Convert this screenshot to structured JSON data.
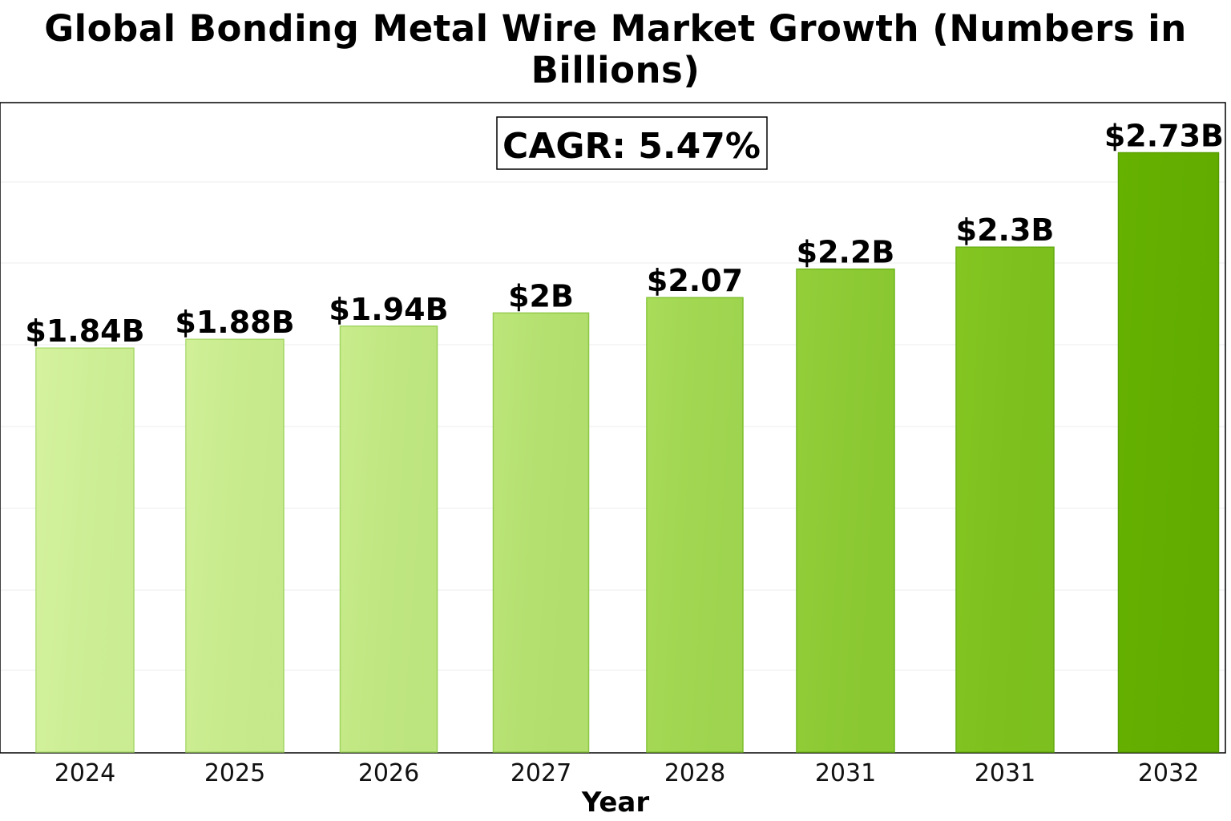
{
  "chart_data": {
    "type": "bar",
    "title": "Global Bonding Metal Wire Market Growth (Numbers in Billions)",
    "xlabel": "Year",
    "ylabel": "",
    "categories": [
      "2024",
      "2025",
      "2026",
      "2027",
      "2028",
      "2031",
      "2031",
      "2032"
    ],
    "values": [
      1.84,
      1.88,
      1.94,
      2.0,
      2.07,
      2.2,
      2.3,
      2.73
    ],
    "data_labels": [
      "$1.84B",
      "$1.88B",
      "$1.94B",
      "$2B",
      "$2.07",
      "$2.2B",
      "$2.3B",
      "$2.73B"
    ],
    "annotation": "CAGR: 5.47%",
    "grid": true,
    "bar_colors": [
      "#d6f3a0",
      "#d1f098",
      "#c9ec8c",
      "#bde67a",
      "#a9dc5a",
      "#94cf3a",
      "#85c622",
      "#66b200"
    ],
    "bar_edge_colors": [
      "#a8d86a",
      "#a2d562",
      "#98cf56",
      "#8cc644",
      "#7dbd2c",
      "#6cb31a",
      "#62ab10",
      "#559b00"
    ]
  }
}
